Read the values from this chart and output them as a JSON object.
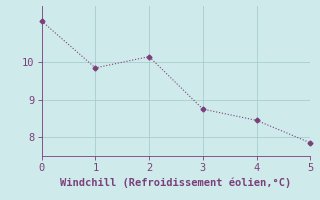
{
  "x": [
    0,
    1,
    2,
    3,
    4,
    5
  ],
  "y": [
    11.1,
    9.85,
    10.15,
    8.75,
    8.45,
    7.85
  ],
  "line_color": "#7b3f7b",
  "marker": "D",
  "marker_size": 2.5,
  "bg_color": "#ceeaea",
  "grid_color": "#a8cecc",
  "xlabel": "Windchill (Refroidissement éolien,°C)",
  "xlabel_color": "#7b3f7b",
  "xlabel_fontsize": 7.5,
  "tick_color": "#7b3f7b",
  "tick_fontsize": 7.5,
  "axis_color": "#7b3f7b",
  "xlim": [
    0,
    5
  ],
  "ylim": [
    7.5,
    11.5
  ],
  "yticks": [
    8,
    9,
    10
  ],
  "xticks": [
    0,
    1,
    2,
    3,
    4,
    5
  ]
}
